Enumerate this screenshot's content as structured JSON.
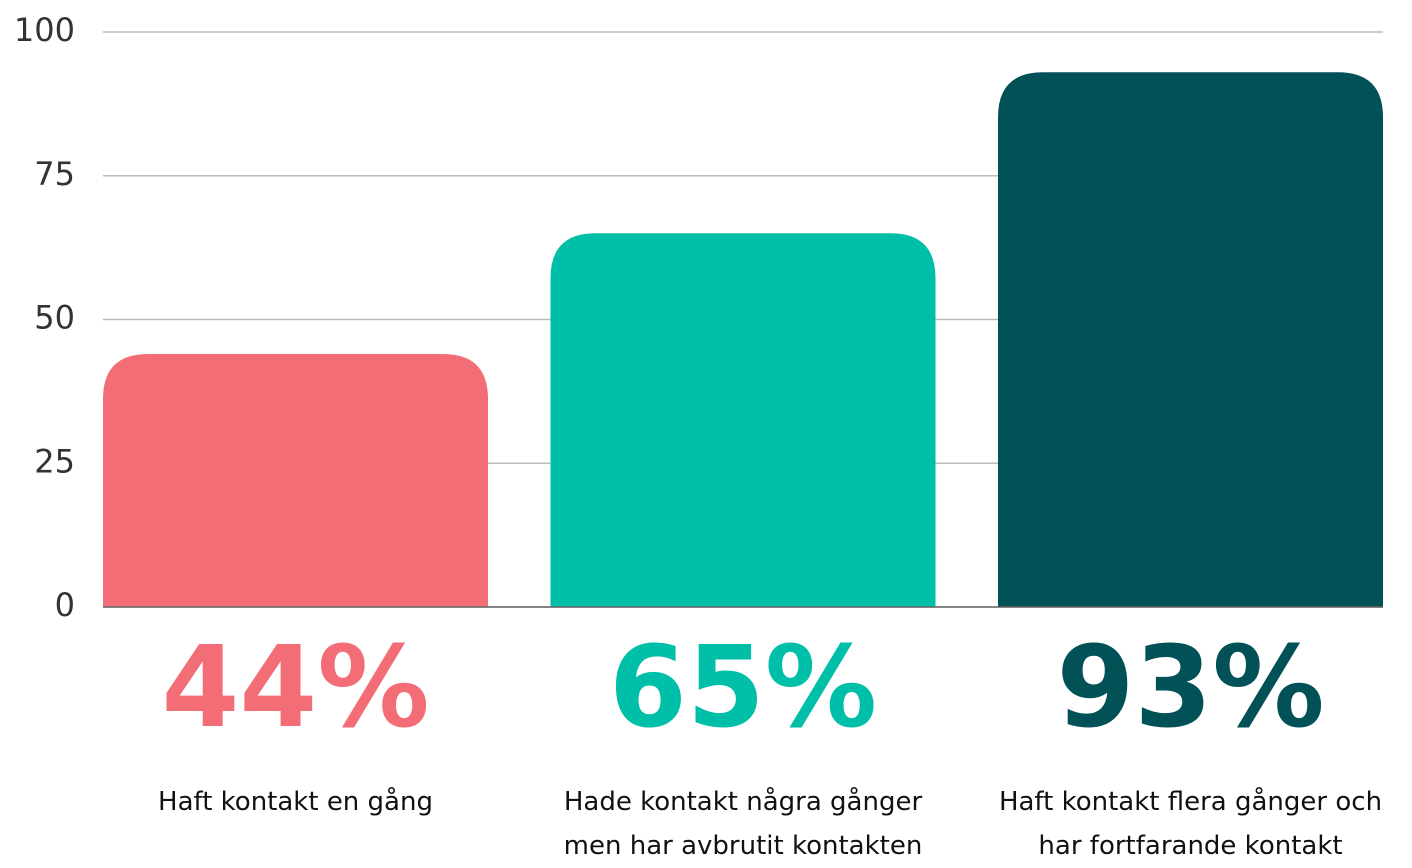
{
  "chart_data": {
    "type": "bar",
    "categories": [
      "Haft kontakt en gång",
      "Hade kontakt några gånger men har avbrutit kontakten",
      "Haft kontakt flera gånger och har fortfarande kontakt"
    ],
    "values": [
      44,
      65,
      93
    ],
    "value_labels": [
      "44%",
      "65%",
      "93%"
    ],
    "colors": [
      "#f36d77",
      "#00bfa8",
      "#015157"
    ],
    "ylim": [
      0,
      100
    ],
    "yticks": [
      0,
      25,
      50,
      75,
      100
    ],
    "grid": true
  }
}
